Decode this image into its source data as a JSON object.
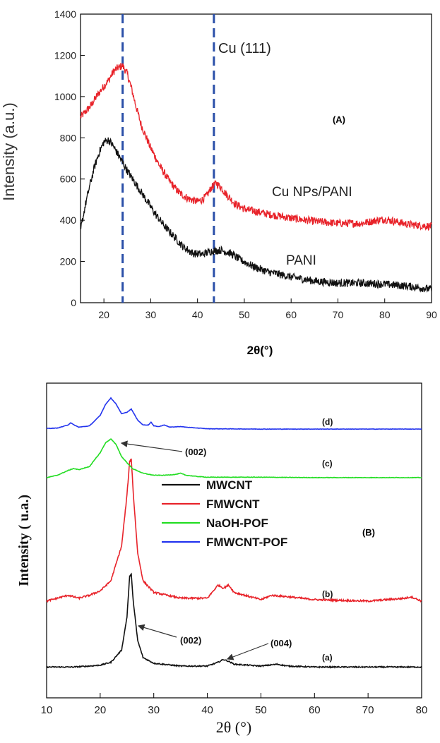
{
  "chart_data": [
    {
      "type": "line",
      "panel_label": "(A)",
      "ylabel": "Intensity (a.u.)",
      "xlabel": "2θ(°)",
      "xlim": [
        15,
        90
      ],
      "ylim": [
        0,
        1400
      ],
      "x_ticks": [
        20,
        30,
        40,
        50,
        60,
        70,
        80,
        90
      ],
      "y_ticks": [
        0,
        200,
        400,
        600,
        800,
        1000,
        1200,
        1400
      ],
      "grid": false,
      "reference_lines": [
        {
          "x": 24,
          "label": ""
        },
        {
          "x": 43.5,
          "label": "Cu (111)"
        }
      ],
      "series": [
        {
          "name": "Cu NPs/PANI",
          "color": "#e8232a",
          "x": [
            15,
            17,
            19,
            21,
            22,
            23,
            24,
            25,
            26,
            27,
            28,
            30,
            32,
            34,
            36,
            38,
            40,
            41,
            42,
            43,
            44,
            45,
            46,
            48,
            50,
            55,
            60,
            65,
            70,
            75,
            78,
            80,
            82,
            85,
            90
          ],
          "y": [
            900,
            950,
            1020,
            1080,
            1120,
            1140,
            1150,
            1110,
            1030,
            940,
            860,
            750,
            660,
            590,
            535,
            505,
            490,
            500,
            520,
            560,
            580,
            560,
            530,
            480,
            455,
            430,
            410,
            395,
            385,
            385,
            398,
            405,
            395,
            380,
            370
          ]
        },
        {
          "name": "PANI",
          "color": "#111111",
          "x": [
            15,
            16,
            17,
            18,
            19,
            20,
            21,
            22,
            23,
            24,
            25,
            27,
            29,
            31,
            33,
            35,
            37,
            39,
            41,
            43,
            45,
            47,
            49,
            52,
            55,
            60,
            65,
            70,
            75,
            80,
            85,
            90
          ],
          "y": [
            350,
            470,
            570,
            660,
            730,
            780,
            790,
            760,
            720,
            680,
            640,
            570,
            500,
            430,
            370,
            320,
            270,
            240,
            235,
            250,
            255,
            240,
            210,
            175,
            150,
            125,
            105,
            95,
            95,
            90,
            80,
            65
          ]
        }
      ]
    },
    {
      "type": "line",
      "panel_label": "(B)",
      "ylabel": "Intensity ( u.a.)",
      "xlabel": "2θ (°)",
      "xlim": [
        10,
        80
      ],
      "x_ticks": [
        10,
        20,
        30,
        40,
        50,
        60,
        70,
        80
      ],
      "grid": false,
      "legend_position": "center",
      "series": [
        {
          "name": "MWCNT",
          "curve_label": "(a)",
          "color": "#111111",
          "x": [
            10,
            15,
            18,
            20,
            22,
            24,
            25,
            25.5,
            25.8,
            26.2,
            27,
            28,
            30,
            35,
            40,
            42,
            43,
            44,
            45,
            50,
            53,
            55,
            60,
            70,
            80
          ],
          "y": [
            0.02,
            0.02,
            0.03,
            0.04,
            0.07,
            0.2,
            0.55,
            0.98,
            1.0,
            0.7,
            0.3,
            0.12,
            0.06,
            0.03,
            0.03,
            0.07,
            0.1,
            0.08,
            0.05,
            0.03,
            0.05,
            0.03,
            0.02,
            0.02,
            0.02
          ]
        },
        {
          "name": "FMWCNT",
          "curve_label": "(b)",
          "color": "#e8232a",
          "x": [
            10,
            12,
            14,
            16,
            18,
            20,
            22,
            24,
            25,
            25.5,
            25.8,
            26.2,
            27,
            28,
            30,
            35,
            40,
            42,
            43,
            44,
            45,
            50,
            52,
            55,
            60,
            70,
            77,
            78,
            80
          ],
          "y": [
            0.02,
            0.04,
            0.06,
            0.04,
            0.06,
            0.09,
            0.16,
            0.4,
            0.75,
            0.98,
            1.0,
            0.75,
            0.35,
            0.16,
            0.08,
            0.04,
            0.04,
            0.13,
            0.11,
            0.13,
            0.08,
            0.03,
            0.06,
            0.05,
            0.03,
            0.02,
            0.04,
            0.05,
            0.02
          ]
        },
        {
          "name": "NaOH-POF",
          "curve_label": "(c)",
          "color": "#22dd22",
          "x": [
            10,
            12,
            14,
            15,
            16,
            18,
            20,
            21,
            22,
            23,
            24,
            26,
            28,
            30,
            32,
            34,
            35,
            36,
            38,
            40,
            50,
            60,
            70,
            80
          ],
          "y": [
            0.02,
            0.08,
            0.2,
            0.25,
            0.22,
            0.3,
            0.65,
            0.9,
            1.0,
            0.85,
            0.55,
            0.25,
            0.13,
            0.08,
            0.08,
            0.1,
            0.13,
            0.08,
            0.05,
            0.03,
            0.03,
            0.02,
            0.02,
            0.02
          ]
        },
        {
          "name": "FMWCNT-POF",
          "curve_label": "(d)",
          "color": "#2233ee",
          "x": [
            10,
            12,
            14,
            14.5,
            15,
            16,
            18,
            20,
            21,
            22,
            23,
            24,
            25,
            25.8,
            26.5,
            27,
            28,
            29,
            29.5,
            30,
            31,
            32,
            33,
            35,
            36,
            40,
            50,
            60,
            70,
            80
          ],
          "y": [
            0.04,
            0.05,
            0.15,
            0.22,
            0.16,
            0.08,
            0.12,
            0.45,
            0.8,
            1.0,
            0.8,
            0.5,
            0.55,
            0.65,
            0.45,
            0.3,
            0.15,
            0.15,
            0.24,
            0.12,
            0.1,
            0.15,
            0.08,
            0.1,
            0.08,
            0.03,
            0.02,
            0.02,
            0.02,
            0.02
          ]
        }
      ],
      "annotations": [
        {
          "text": "(002)",
          "target_series": "NaOH-POF",
          "x": 22
        },
        {
          "text": "(002)",
          "target_series": "MWCNT",
          "x": 26
        },
        {
          "text": "(004)",
          "target_series": "MWCNT",
          "x": 43.5
        }
      ]
    }
  ]
}
